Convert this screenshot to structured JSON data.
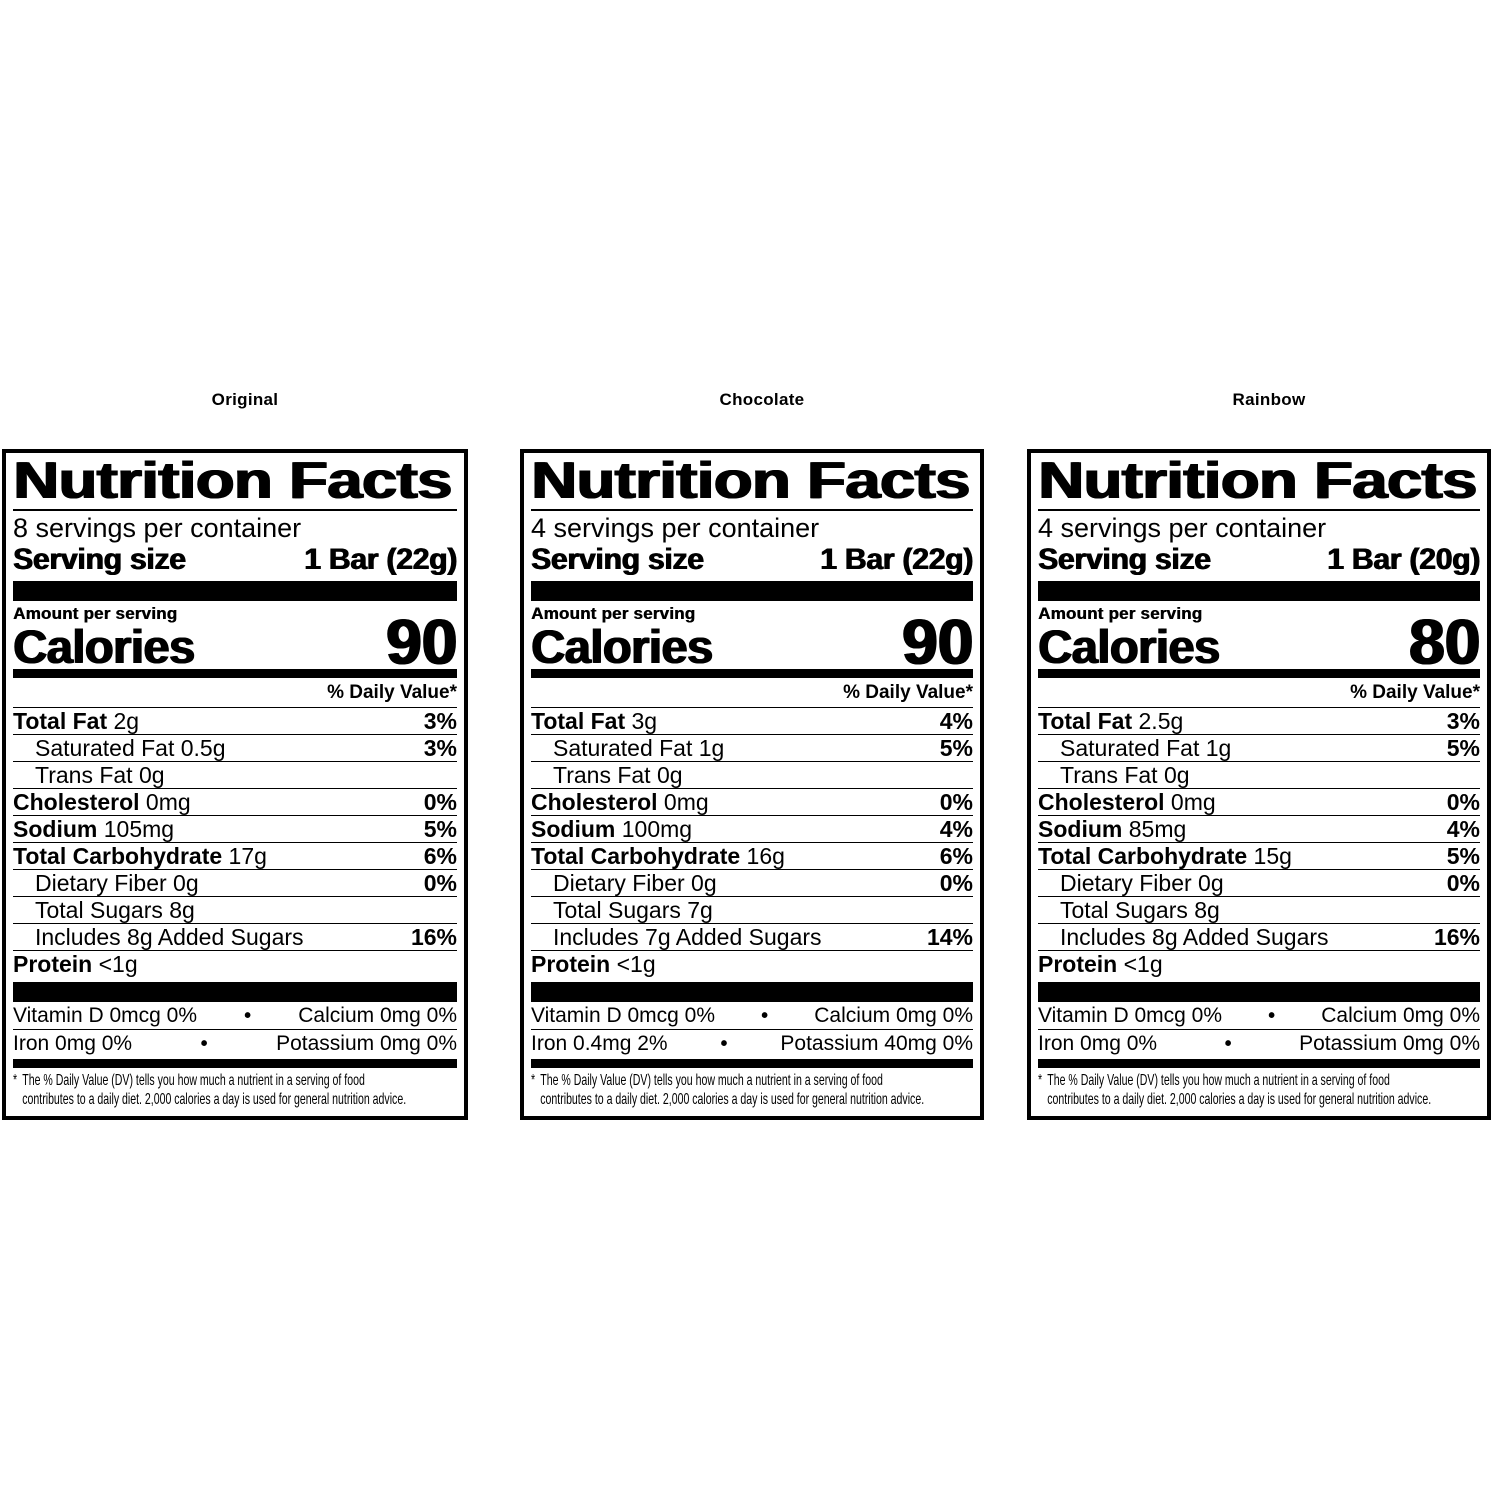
{
  "colors": {
    "ink": "#000000",
    "paper": "#ffffff"
  },
  "panels": [
    {
      "title": "Original",
      "heading": "Nutrition Facts",
      "servings": "8 servings per container",
      "serving_size": {
        "label": "Serving size",
        "value": "1 Bar (22g)"
      },
      "amount_per_serving": "Amount per serving",
      "calories": {
        "label": "Calories",
        "value": "90"
      },
      "daily_value_header": "% Daily Value*",
      "rows": [
        {
          "bold": "Total Fat",
          "rest": "2g",
          "dv": "3%"
        },
        {
          "bold": "",
          "rest": "Saturated Fat 0.5g",
          "dv": "3%"
        },
        {
          "bold": "",
          "rest": "Trans Fat 0g",
          "dv": ""
        },
        {
          "bold": "Cholesterol",
          "rest": "0mg",
          "dv": "0%"
        },
        {
          "bold": "Sodium",
          "rest": "105mg",
          "dv": "5%"
        },
        {
          "bold": "Total Carbohydrate",
          "rest": "17g",
          "dv": "6%"
        },
        {
          "bold": "",
          "rest": "Dietary Fiber 0g",
          "dv": "0%"
        },
        {
          "bold": "",
          "rest": "Total Sugars 8g",
          "dv": ""
        },
        {
          "bold": "",
          "rest": "Includes 8g Added Sugars",
          "dv": "16%"
        },
        {
          "bold": "Protein",
          "rest": "<1g",
          "dv": ""
        }
      ],
      "bullet": "•",
      "micros": [
        {
          "left": "Vitamin D 0mcg 0%",
          "right": "Calcium 0mg 0%"
        },
        {
          "left": "Iron 0mg 0%",
          "right": "Potassium 0mg 0%"
        }
      ],
      "footnote": {
        "asterisk": "*",
        "line1": "The % Daily Value (DV) tells you how much a nutrient in a serving of food",
        "line2": "contributes to a daily diet. 2,000 calories a day is used for general nutrition advice."
      }
    },
    {
      "title": "Chocolate",
      "heading": "Nutrition Facts",
      "servings": "4 servings per container",
      "serving_size": {
        "label": "Serving size",
        "value": "1 Bar (22g)"
      },
      "amount_per_serving": "Amount per serving",
      "calories": {
        "label": "Calories",
        "value": "90"
      },
      "daily_value_header": "% Daily Value*",
      "rows": [
        {
          "bold": "Total Fat",
          "rest": "3g",
          "dv": "4%"
        },
        {
          "bold": "",
          "rest": "Saturated Fat 1g",
          "dv": "5%"
        },
        {
          "bold": "",
          "rest": "Trans Fat 0g",
          "dv": ""
        },
        {
          "bold": "Cholesterol",
          "rest": "0mg",
          "dv": "0%"
        },
        {
          "bold": "Sodium",
          "rest": "100mg",
          "dv": "4%"
        },
        {
          "bold": "Total Carbohydrate",
          "rest": "16g",
          "dv": "6%"
        },
        {
          "bold": "",
          "rest": "Dietary Fiber 0g",
          "dv": "0%"
        },
        {
          "bold": "",
          "rest": "Total Sugars 7g",
          "dv": ""
        },
        {
          "bold": "",
          "rest": "Includes 7g Added Sugars",
          "dv": "14%"
        },
        {
          "bold": "Protein",
          "rest": "<1g",
          "dv": ""
        }
      ],
      "bullet": "•",
      "micros": [
        {
          "left": "Vitamin D 0mcg 0%",
          "right": "Calcium 0mg 0%"
        },
        {
          "left": "Iron 0.4mg 2%",
          "right": "Potassium 40mg 0%"
        }
      ],
      "footnote": {
        "asterisk": "*",
        "line1": "The % Daily Value (DV) tells you how much a nutrient in a serving of food",
        "line2": "contributes to a daily diet. 2,000 calories a day is used for general nutrition advice."
      }
    },
    {
      "title": "Rainbow",
      "heading": "Nutrition Facts",
      "servings": "4 servings per container",
      "serving_size": {
        "label": "Serving size",
        "value": "1 Bar (20g)"
      },
      "amount_per_serving": "Amount per serving",
      "calories": {
        "label": "Calories",
        "value": "80"
      },
      "daily_value_header": "% Daily Value*",
      "rows": [
        {
          "bold": "Total Fat",
          "rest": "2.5g",
          "dv": "3%"
        },
        {
          "bold": "",
          "rest": "Saturated Fat 1g",
          "dv": "5%"
        },
        {
          "bold": "",
          "rest": "Trans Fat 0g",
          "dv": ""
        },
        {
          "bold": "Cholesterol",
          "rest": "0mg",
          "dv": "0%"
        },
        {
          "bold": "Sodium",
          "rest": "85mg",
          "dv": "4%"
        },
        {
          "bold": "Total Carbohydrate",
          "rest": "15g",
          "dv": "5%"
        },
        {
          "bold": "",
          "rest": "Dietary Fiber 0g",
          "dv": "0%"
        },
        {
          "bold": "",
          "rest": "Total Sugars 8g",
          "dv": ""
        },
        {
          "bold": "",
          "rest": "Includes 8g Added Sugars",
          "dv": "16%"
        },
        {
          "bold": "Protein",
          "rest": "<1g",
          "dv": ""
        }
      ],
      "bullet": "•",
      "micros": [
        {
          "left": "Vitamin D 0mcg 0%",
          "right": "Calcium 0mg 0%"
        },
        {
          "left": "Iron 0mg 0%",
          "right": "Potassium 0mg 0%"
        }
      ],
      "footnote": {
        "asterisk": "*",
        "line1": "The % Daily Value (DV) tells you how much a nutrient in a serving of food",
        "line2": "contributes to a daily diet. 2,000 calories a day is used for general nutrition advice."
      }
    }
  ]
}
